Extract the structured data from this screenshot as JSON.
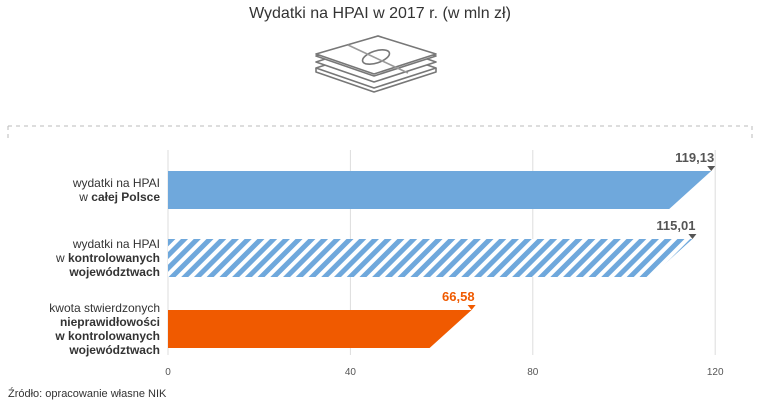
{
  "title": "Wydatki na HPAI w 2017 r. (w mln zł)",
  "source": "Źródło: opracowanie własne NIK",
  "icon": "money-stack-icon",
  "colors": {
    "bar_blue": "#6fa8dc",
    "bar_stripe": "#6fa8dc",
    "bar_orange": "#f05a00",
    "label_gray": "#555555",
    "label_orange": "#f05a00"
  },
  "chart_data": {
    "type": "bar",
    "orientation": "horizontal",
    "categories": [
      {
        "lines": [
          {
            "text": "wydatki na HPAI",
            "bold": false
          },
          {
            "prefix": "w ",
            "text": "całej Polsce",
            "bold": true
          }
        ]
      },
      {
        "lines": [
          {
            "text": "wydatki na HPAI",
            "bold": false
          },
          {
            "prefix": "w ",
            "text": "kontrolowanych",
            "bold": true
          },
          {
            "text": "województwach",
            "bold": true
          }
        ]
      },
      {
        "lines": [
          {
            "text": "kwota stwierdzonych",
            "bold": false
          },
          {
            "text": "nieprawidłowości",
            "bold": true
          },
          {
            "text": "w kontrolowanych",
            "bold": true
          },
          {
            "text": "województwach",
            "bold": true
          }
        ]
      }
    ],
    "values": [
      119.13,
      115.01,
      66.58
    ],
    "value_labels": [
      "119,13",
      "115,01",
      "66,58"
    ],
    "bar_styles": [
      "solid-blue",
      "striped-blue",
      "solid-orange"
    ],
    "xlim": [
      0,
      125
    ],
    "xticks": [
      0,
      40,
      80,
      120
    ],
    "grid": true
  }
}
